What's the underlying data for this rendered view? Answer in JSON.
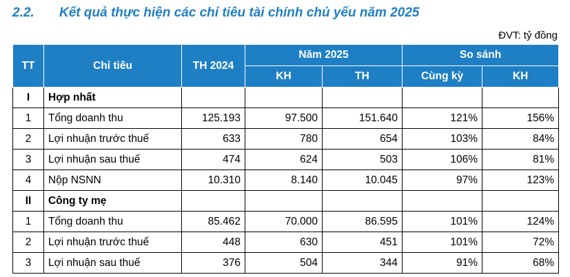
{
  "heading": {
    "number": "2.2.",
    "title": "Kết quả thực hiện các chỉ tiêu tài chính chủ yếu năm 2025"
  },
  "unit": "ĐVT: tỷ đồng",
  "headers": {
    "tt": "TT",
    "name": "Chỉ tiêu",
    "th2024": "TH 2024",
    "nam2025": "Năm 2025",
    "sosanh": "So sánh",
    "kh": "KH",
    "th": "TH",
    "cungky": "Cùng kỳ",
    "kh2": "KH"
  },
  "sections": [
    {
      "tt": "I",
      "name": "Hợp nhất",
      "rows": [
        {
          "tt": "1",
          "name": "Tổng doanh thu",
          "th2024": "125.193",
          "kh": "97.500",
          "th": "151.640",
          "cungky": "121%",
          "kh_pct": "156%"
        },
        {
          "tt": "2",
          "name": "Lợi nhuận trước thuế",
          "th2024": "633",
          "kh": "780",
          "th": "654",
          "cungky": "103%",
          "kh_pct": "84%"
        },
        {
          "tt": "3",
          "name": "Lợi nhuận sau thuế",
          "th2024": "474",
          "kh": "624",
          "th": "503",
          "cungky": "106%",
          "kh_pct": "81%"
        },
        {
          "tt": "4",
          "name": "Nộp NSNN",
          "th2024": "10.310",
          "kh": "8.140",
          "th": "10.045",
          "cungky": "97%",
          "kh_pct": "123%"
        }
      ]
    },
    {
      "tt": "II",
      "name": "Công ty mẹ",
      "rows": [
        {
          "tt": "1",
          "name": "Tổng doanh thu",
          "th2024": "85.462",
          "kh": "70.000",
          "th": "86.595",
          "cungky": "101%",
          "kh_pct": "124%"
        },
        {
          "tt": "2",
          "name": "Lợi nhuận trước thuế",
          "th2024": "448",
          "kh": "630",
          "th": "451",
          "cungky": "101%",
          "kh_pct": "72%"
        },
        {
          "tt": "3",
          "name": "Lợi nhuận sau thuế",
          "th2024": "376",
          "kh": "504",
          "th": "344",
          "cungky": "91%",
          "kh_pct": "68%"
        }
      ]
    }
  ]
}
